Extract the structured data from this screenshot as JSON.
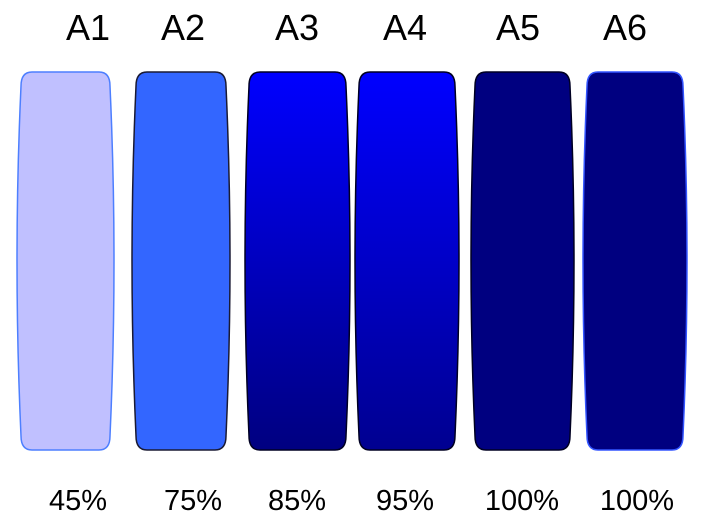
{
  "swatches": [
    {
      "label": "A1",
      "percent": "45%",
      "fill_top": "#c0c0ff",
      "fill_bottom": "#c0c0ff",
      "stroke": "#4d7fff"
    },
    {
      "label": "A2",
      "percent": "75%",
      "fill_top": "#3366ff",
      "fill_bottom": "#3366ff",
      "stroke": "#1a1a33"
    },
    {
      "label": "A3",
      "percent": "85%",
      "fill_top": "#0000ff",
      "fill_bottom": "#000080",
      "stroke": "#000022"
    },
    {
      "label": "A4",
      "percent": "95%",
      "fill_top": "#0000ff",
      "fill_bottom": "#000090",
      "stroke": "#000022"
    },
    {
      "label": "A5",
      "percent": "100%",
      "fill_top": "#000080",
      "fill_bottom": "#000080",
      "stroke": "#000022"
    },
    {
      "label": "A6",
      "percent": "100%",
      "fill_top": "#000080",
      "fill_bottom": "#000080",
      "stroke": "#3355ff"
    }
  ]
}
